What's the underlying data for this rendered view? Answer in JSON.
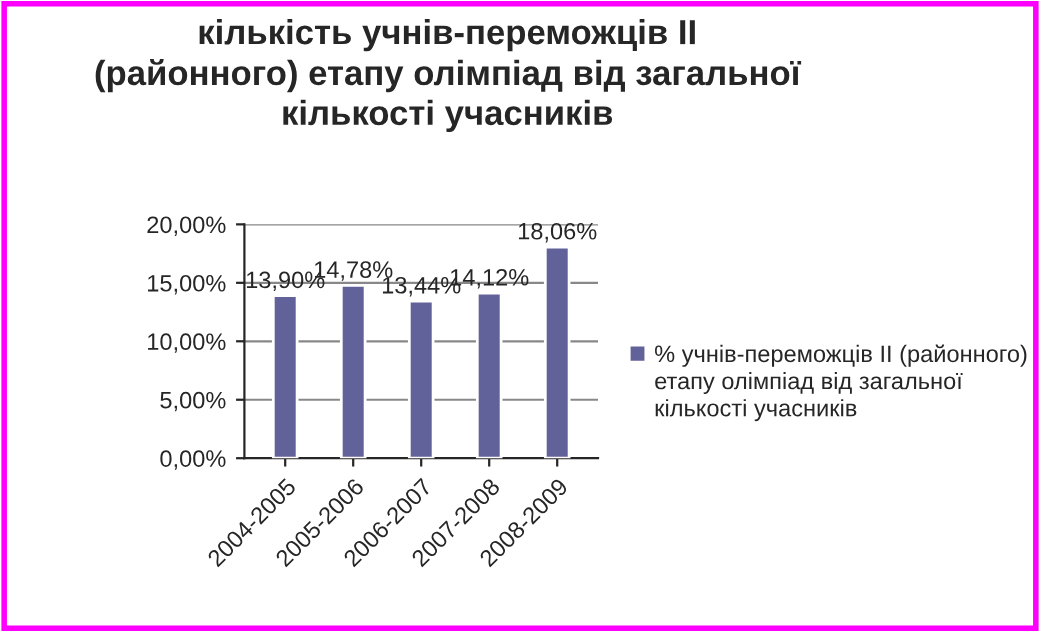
{
  "chart_data": {
    "type": "bar",
    "title": "кількість учнів-переможців ІІ\n(районного) етапу олімпіад від загальної\nкількості учасників",
    "categories": [
      "2004-2005",
      "2005-2006",
      "2006-2007",
      "2007-2008",
      "2008-2009"
    ],
    "series": [
      {
        "name": "% учнів-переможців ІІ (районного) етапу олімпіад від загальної кількості учасників",
        "color": "#62629a",
        "values": [
          13.9,
          14.78,
          13.44,
          14.12,
          18.06
        ],
        "value_labels": [
          "13,90%",
          "14,78%",
          "13,44%",
          "14,12%",
          "18,06%"
        ]
      }
    ],
    "ylim": [
      0,
      20
    ],
    "yticks": [
      {
        "value": 0,
        "label": "0,00%"
      },
      {
        "value": 5,
        "label": "5,00%"
      },
      {
        "value": 10,
        "label": "10,00%"
      },
      {
        "value": 15,
        "label": "15,00%"
      },
      {
        "value": 20,
        "label": "20,00%"
      }
    ],
    "grid": "y",
    "legend": "right"
  }
}
